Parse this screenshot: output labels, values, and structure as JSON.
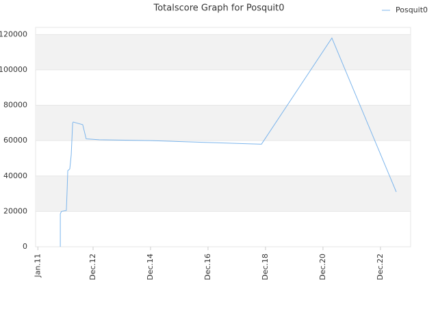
{
  "chart_data": {
    "type": "line",
    "title": "Totalscore Graph for Posquit0",
    "x": [
      2011.78,
      2011.78,
      2011.82,
      2011.99,
      2012.02,
      2012.04,
      2012.11,
      2012.16,
      2012.21,
      2012.23,
      2012.56,
      2012.68,
      2013.13,
      2014.92,
      2016.82,
      2018.78,
      2021.23,
      2023.47
    ],
    "series": [
      {
        "name": "Posquit0",
        "color": "#7cb5ec",
        "values": [
          0,
          18600,
          20000,
          20500,
          33000,
          43000,
          44000,
          52000,
          70000,
          70500,
          69000,
          61000,
          60500,
          60000,
          59000,
          58000,
          118000,
          31000
        ]
      }
    ],
    "xlim": [
      2010.92,
      2023.97
    ],
    "xticks": [
      {
        "value": 2011.0,
        "label": "Jan.11"
      },
      {
        "value": 2012.92,
        "label": "Dec.12"
      },
      {
        "value": 2014.92,
        "label": "Dec.14"
      },
      {
        "value": 2016.92,
        "label": "Dec.16"
      },
      {
        "value": 2018.92,
        "label": "Dec.18"
      },
      {
        "value": 2020.92,
        "label": "Dec.20"
      },
      {
        "value": 2022.92,
        "label": "Dec.22"
      }
    ],
    "ylim": [
      0,
      124000
    ],
    "yticks": [
      0,
      20000,
      40000,
      60000,
      80000,
      100000,
      120000
    ],
    "grid": true,
    "legend": "top-right"
  }
}
